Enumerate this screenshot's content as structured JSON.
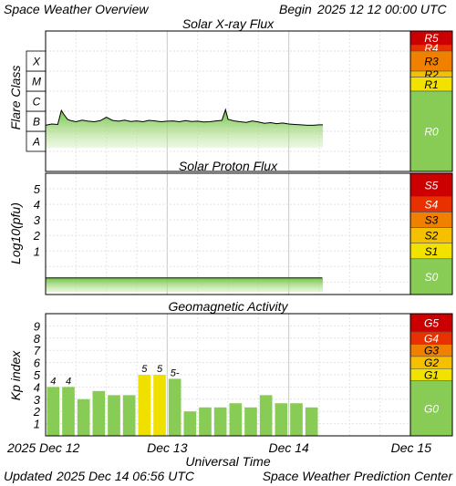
{
  "header": {
    "title": "Space Weather Overview",
    "begin_label": "Begin",
    "begin_value": "2025 12 12 00:00 UTC"
  },
  "footer": {
    "updated_label": "Updated",
    "updated_value": "2025 Dec 14 06:56 UTC",
    "credit": "Space Weather Prediction Center"
  },
  "colors": {
    "fill_green": "#8ed05a",
    "kp_green": "#88cc55",
    "kp_yellow": "#f0e000",
    "scale_green": "#88cc55",
    "scale_level1": "#f2e200",
    "scale_level2": "#f5c000",
    "scale_level3": "#f08000",
    "scale_level4": "#e83000",
    "scale_level5": "#cc0000"
  },
  "chart_data": [
    {
      "id": "xray",
      "type": "line",
      "title": "Solar X-ray Flux",
      "ylabel": "Flare Class",
      "y_scale": "log",
      "ylim": [
        1e-09,
        0.01
      ],
      "class_bands": [
        "A",
        "B",
        "C",
        "M",
        "X"
      ],
      "x_range_days": [
        0,
        3
      ],
      "x_tick_labels": [
        "2025 Dec 12",
        "Dec 13",
        "Dec 14",
        "Dec 15"
      ],
      "x_data_end_day": 2.28,
      "series": [
        {
          "x_days": [
            0.0,
            0.05,
            0.1,
            0.13,
            0.15,
            0.18,
            0.2,
            0.25,
            0.3,
            0.35,
            0.4,
            0.45,
            0.5,
            0.55,
            0.6,
            0.65,
            0.7,
            0.75,
            0.8,
            0.85,
            0.9,
            0.95,
            1.0,
            1.05,
            1.1,
            1.15,
            1.2,
            1.25,
            1.3,
            1.35,
            1.4,
            1.45,
            1.48,
            1.5,
            1.55,
            1.6,
            1.65,
            1.7,
            1.75,
            1.8,
            1.85,
            1.9,
            1.95,
            2.0,
            2.05,
            2.1,
            2.15,
            2.2,
            2.25,
            2.28
          ],
          "flux": [
            2e-07,
            2.3e-07,
            2.2e-07,
            1.1e-06,
            7e-07,
            4e-07,
            3.5e-07,
            3e-07,
            3.6e-07,
            3.2e-07,
            3e-07,
            3.4e-07,
            5e-07,
            3.5e-07,
            3.2e-07,
            3.6e-07,
            3.1e-07,
            3.3e-07,
            3e-07,
            3.5e-07,
            3.3e-07,
            3e-07,
            3.2e-07,
            3.3e-07,
            3e-07,
            3.4e-07,
            3.1e-07,
            3.2e-07,
            2.9e-07,
            3e-07,
            3.3e-07,
            3.5e-07,
            1.2e-06,
            4e-07,
            3.3e-07,
            3e-07,
            2.8e-07,
            3.3e-07,
            2.9e-07,
            2.5e-07,
            2.7e-07,
            2.4e-07,
            2.6e-07,
            2.3e-07,
            2.2e-07,
            2.1e-07,
            2e-07,
            2e-07,
            2.1e-07,
            2.1e-07
          ]
        }
      ]
    },
    {
      "id": "proton",
      "type": "line",
      "title": "Solar Proton Flux",
      "ylabel": "Log10(pfu)",
      "y_scale": "log",
      "ylim_log10": [
        -1.8,
        6.0
      ],
      "y_tick_labels": [
        "1",
        "2",
        "3",
        "4",
        "5"
      ],
      "x_range_days": [
        0,
        3
      ],
      "x_tick_labels": [
        "2025 Dec 12",
        "Dec 13",
        "Dec 14",
        "Dec 15"
      ],
      "x_data_end_day": 2.28,
      "series": [
        {
          "log10_pfu_level": -0.7
        }
      ]
    },
    {
      "id": "kp",
      "type": "bar",
      "title": "Geomagnetic Activity",
      "ylabel": "Kp index",
      "xlabel": "Universal Time",
      "ylim": [
        0,
        10
      ],
      "y_tick_labels": [
        "1",
        "2",
        "3",
        "4",
        "5",
        "6",
        "7",
        "8",
        "9"
      ],
      "x_range_days": [
        0,
        3
      ],
      "x_tick_labels": [
        "2025 Dec 12",
        "Dec 13",
        "Dec 14",
        "Dec 15"
      ],
      "bar_period_hours": 3,
      "values": [
        4.0,
        4.0,
        3.0,
        3.67,
        3.33,
        3.33,
        5.0,
        5.0,
        4.67,
        2.0,
        2.33,
        2.33,
        2.67,
        2.33,
        3.33,
        2.67,
        2.67,
        2.33
      ],
      "value_labels": [
        "4",
        "4",
        "",
        "",
        "",
        "",
        "5",
        "5",
        "5-",
        "",
        "",
        "",
        "",
        "",
        "",
        "",
        "",
        ""
      ]
    }
  ],
  "scales": {
    "radio": [
      {
        "label": "R5",
        "color": "#cc0000",
        "text_color": "#ffffff"
      },
      {
        "label": "R4",
        "color": "#e83000",
        "text_color": "#ffffff"
      },
      {
        "label": "R3",
        "color": "#f08000",
        "text_color": "#000000"
      },
      {
        "label": "R2",
        "color": "#f5c000",
        "text_color": "#000000"
      },
      {
        "label": "R1",
        "color": "#f2e200",
        "text_color": "#000000"
      },
      {
        "label": "R0",
        "color": "#88cc55",
        "text_color": "#ffffff"
      }
    ],
    "solar": [
      {
        "label": "S5",
        "color": "#cc0000",
        "text_color": "#ffffff"
      },
      {
        "label": "S4",
        "color": "#e83000",
        "text_color": "#ffffff"
      },
      {
        "label": "S3",
        "color": "#f08000",
        "text_color": "#000000"
      },
      {
        "label": "S2",
        "color": "#f5c000",
        "text_color": "#000000"
      },
      {
        "label": "S1",
        "color": "#f2e200",
        "text_color": "#000000"
      },
      {
        "label": "S0",
        "color": "#88cc55",
        "text_color": "#ffffff"
      }
    ],
    "geomagnetic": [
      {
        "label": "G5",
        "color": "#cc0000",
        "text_color": "#ffffff"
      },
      {
        "label": "G4",
        "color": "#e83000",
        "text_color": "#ffffff"
      },
      {
        "label": "G3",
        "color": "#f08000",
        "text_color": "#000000"
      },
      {
        "label": "G2",
        "color": "#f5c000",
        "text_color": "#000000"
      },
      {
        "label": "G1",
        "color": "#f2e200",
        "text_color": "#000000"
      },
      {
        "label": "G0",
        "color": "#88cc55",
        "text_color": "#ffffff"
      }
    ]
  }
}
